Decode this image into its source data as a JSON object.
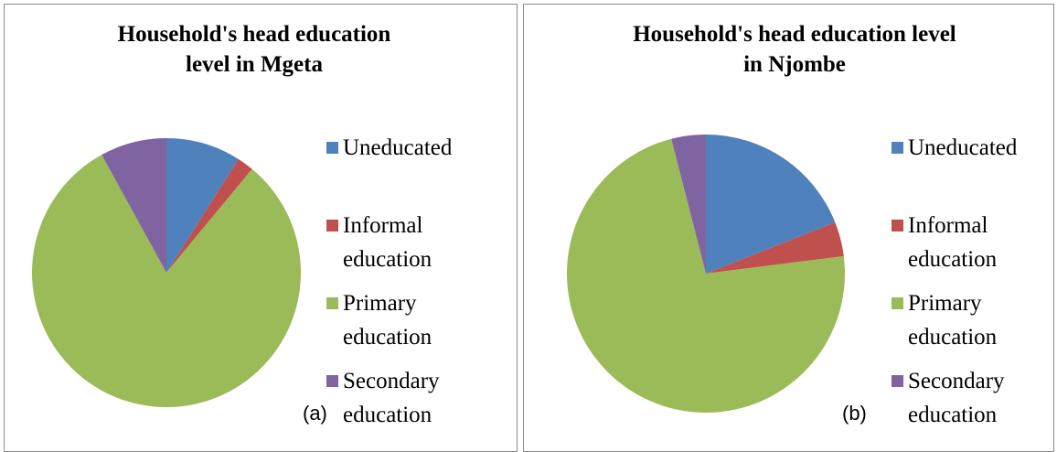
{
  "chart_data": [
    {
      "type": "pie",
      "title": "Household's head education level in Mgeta",
      "categories": [
        "Uneducated",
        "Informal education",
        "Primary education",
        "Secondary education"
      ],
      "values": [
        9,
        2,
        81,
        8
      ],
      "colors": [
        "#4f81bd",
        "#c0504d",
        "#9bbb59",
        "#8064a2"
      ],
      "annotation": "(a)",
      "legend": "right"
    },
    {
      "type": "pie",
      "title": "Household's head education level in Njombe",
      "categories": [
        "Uneducated",
        "Informal education",
        "Primary education",
        "Secondary education"
      ],
      "values": [
        19,
        4,
        73,
        4
      ],
      "colors": [
        "#4f81bd",
        "#c0504d",
        "#9bbb59",
        "#8064a2"
      ],
      "annotation": "(b)",
      "legend": "right"
    }
  ]
}
